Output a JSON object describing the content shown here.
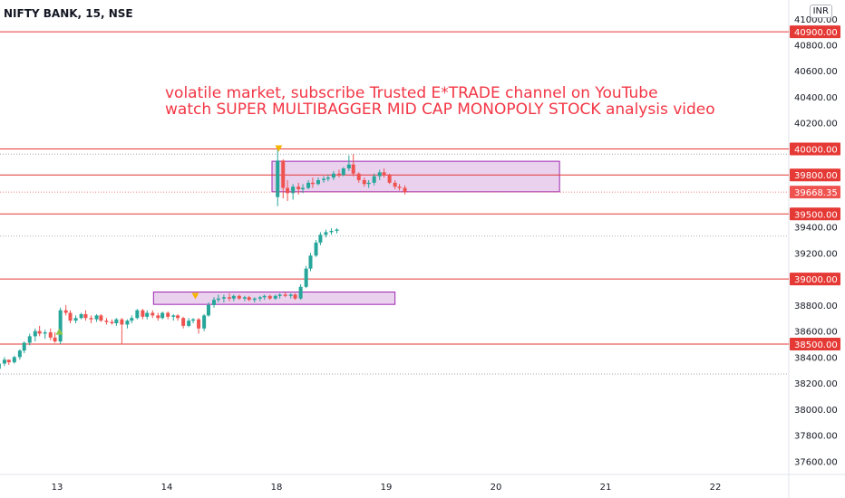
{
  "header": {
    "symbol_label": "NIFTY BANK, 15, NSE",
    "currency_badge": "INR"
  },
  "annotation": {
    "line1": "volatile market, subscribe  Trusted E*TRADE channel on YouTube",
    "line2": "watch SUPER MULTIBAGGER MID CAP MONOPOLY STOCK analysis video"
  },
  "colors": {
    "up": "#26a69a",
    "down": "#ef5350",
    "level_line": "#e53935",
    "zone_fill": "#e1bee7",
    "zone_border": "#9c27b0",
    "marker_up": "#8bc34a",
    "marker_down": "#f5b400"
  },
  "chart_data": {
    "type": "candlestick",
    "ylim": [
      37400,
      41100
    ],
    "x_ticks": [
      "13",
      "14",
      "18",
      "19",
      "20",
      "21",
      "22"
    ],
    "y_ticks": [
      "41000.00",
      "40800.00",
      "40600.00",
      "40400.00",
      "40200.00",
      "39400.00",
      "39200.00",
      "38800.00",
      "38600.00",
      "38400.00",
      "38200.00",
      "38000.00",
      "37800.00",
      "37600.00"
    ],
    "horizontal_levels": [
      {
        "value": 40900,
        "label": "40900.00"
      },
      {
        "value": 40000,
        "label": "40000.00"
      },
      {
        "value": 39800,
        "label": "39800.00"
      },
      {
        "value": 39500,
        "label": "39500.00"
      },
      {
        "value": 39000,
        "label": "39000.00"
      },
      {
        "value": 38500,
        "label": "38500.00"
      }
    ],
    "last_price": {
      "value": 39668.35,
      "label": "39668.35"
    },
    "dotted_levels": [
      39960,
      39330,
      38270
    ],
    "zones": [
      {
        "day_start": 18.0,
        "day_end": 20.58,
        "top": 39905,
        "bottom": 39670
      },
      {
        "day_start": 13.92,
        "day_end": 16.08,
        "top": 38900,
        "bottom": 38805
      }
    ],
    "markers": [
      {
        "type": "up",
        "day": 13.02,
        "price": 38600
      },
      {
        "type": "down",
        "day": 14.26,
        "price": 38865
      },
      {
        "type": "down",
        "day": 18.02,
        "price": 40000
      }
    ],
    "candles": [
      [
        12.38,
        38320,
        38340,
        38240,
        38260
      ],
      [
        12.42,
        38260,
        38330,
        38240,
        38310
      ],
      [
        12.47,
        38310,
        38360,
        38290,
        38350
      ],
      [
        12.52,
        38350,
        38400,
        38330,
        38380
      ],
      [
        12.56,
        38380,
        38380,
        38340,
        38360
      ],
      [
        12.61,
        38360,
        38410,
        38350,
        38400
      ],
      [
        12.66,
        38400,
        38460,
        38380,
        38450
      ],
      [
        12.7,
        38450,
        38520,
        38430,
        38510
      ],
      [
        12.75,
        38510,
        38580,
        38490,
        38560
      ],
      [
        12.8,
        38560,
        38620,
        38520,
        38600
      ],
      [
        12.84,
        38600,
        38640,
        38560,
        38580
      ],
      [
        12.89,
        38580,
        38610,
        38540,
        38590
      ],
      [
        12.94,
        38590,
        38620,
        38530,
        38550
      ],
      [
        12.98,
        38550,
        38590,
        38510,
        38520
      ],
      [
        13.03,
        38520,
        38780,
        38500,
        38760
      ],
      [
        13.08,
        38760,
        38800,
        38720,
        38740
      ],
      [
        13.12,
        38740,
        38760,
        38660,
        38680
      ],
      [
        13.17,
        38680,
        38720,
        38660,
        38700
      ],
      [
        13.22,
        38700,
        38740,
        38690,
        38730
      ],
      [
        13.26,
        38730,
        38760,
        38680,
        38700
      ],
      [
        13.31,
        38700,
        38720,
        38660,
        38690
      ],
      [
        13.36,
        38690,
        38730,
        38670,
        38720
      ],
      [
        13.4,
        38720,
        38730,
        38670,
        38680
      ],
      [
        13.45,
        38680,
        38700,
        38650,
        38670
      ],
      [
        13.5,
        38670,
        38690,
        38650,
        38660
      ],
      [
        13.54,
        38660,
        38700,
        38640,
        38690
      ],
      [
        13.59,
        38690,
        38700,
        38500,
        38650
      ],
      [
        13.64,
        38650,
        38690,
        38620,
        38680
      ],
      [
        13.68,
        38680,
        38720,
        38660,
        38700
      ],
      [
        13.73,
        38700,
        38770,
        38690,
        38760
      ],
      [
        13.78,
        38760,
        38770,
        38690,
        38710
      ],
      [
        13.82,
        38710,
        38760,
        38690,
        38740
      ],
      [
        13.87,
        38740,
        38760,
        38700,
        38720
      ],
      [
        13.92,
        38720,
        38740,
        38680,
        38700
      ],
      [
        13.96,
        38700,
        38750,
        38690,
        38740
      ],
      [
        14.01,
        38740,
        38750,
        38690,
        38710
      ],
      [
        14.06,
        38710,
        38730,
        38680,
        38720
      ],
      [
        14.1,
        38720,
        38730,
        38680,
        38700
      ],
      [
        14.15,
        38700,
        38710,
        38620,
        38640
      ],
      [
        14.2,
        38640,
        38700,
        38630,
        38680
      ],
      [
        14.24,
        38680,
        38700,
        38660,
        38690
      ],
      [
        14.29,
        38690,
        38700,
        38580,
        38620
      ],
      [
        14.34,
        38620,
        38730,
        38600,
        38720
      ],
      [
        14.38,
        38720,
        38820,
        38710,
        38800
      ],
      [
        14.43,
        38800,
        38860,
        38780,
        38840
      ],
      [
        14.47,
        38840,
        38880,
        38820,
        38850
      ],
      [
        14.52,
        38850,
        38880,
        38820,
        38860
      ],
      [
        14.57,
        38860,
        38890,
        38830,
        38850
      ],
      [
        14.61,
        38850,
        38880,
        38830,
        38870
      ],
      [
        14.66,
        38870,
        38880,
        38840,
        38850
      ],
      [
        14.71,
        38850,
        38870,
        38830,
        38860
      ],
      [
        14.75,
        38860,
        38870,
        38830,
        38840
      ],
      [
        14.8,
        38840,
        38860,
        38820,
        38850
      ],
      [
        14.85,
        38850,
        38870,
        38830,
        38860
      ],
      [
        14.89,
        38860,
        38880,
        38840,
        38870
      ],
      [
        14.94,
        38870,
        38880,
        38840,
        38850
      ],
      [
        14.99,
        38850,
        38880,
        38840,
        38870
      ],
      [
        15.03,
        38870,
        38890,
        38850,
        38880
      ],
      [
        15.08,
        38880,
        38900,
        38860,
        38870
      ],
      [
        15.13,
        38870,
        38890,
        38850,
        38880
      ],
      [
        15.17,
        38880,
        38890,
        38840,
        38850
      ],
      [
        15.22,
        38850,
        38960,
        38840,
        38940
      ],
      [
        15.27,
        38940,
        39100,
        38930,
        39080
      ],
      [
        15.31,
        39080,
        39200,
        39060,
        39180
      ],
      [
        15.36,
        39180,
        39300,
        39170,
        39280
      ],
      [
        15.4,
        39280,
        39360,
        39260,
        39340
      ],
      [
        15.45,
        39340,
        39380,
        39320,
        39360
      ],
      [
        15.5,
        39360,
        39390,
        39340,
        39370
      ],
      [
        15.55,
        39370,
        39390,
        39350,
        39380
      ],
      [
        18.01,
        39630,
        40000,
        39560,
        39910
      ],
      [
        18.06,
        39910,
        39920,
        39620,
        39700
      ],
      [
        18.1,
        39700,
        39760,
        39600,
        39660
      ],
      [
        18.15,
        39660,
        39730,
        39610,
        39710
      ],
      [
        18.2,
        39710,
        39740,
        39650,
        39690
      ],
      [
        18.24,
        39690,
        39730,
        39660,
        39700
      ],
      [
        18.29,
        39700,
        39760,
        39690,
        39740
      ],
      [
        18.33,
        39740,
        39780,
        39700,
        39730
      ],
      [
        18.38,
        39730,
        39780,
        39720,
        39760
      ],
      [
        18.43,
        39760,
        39790,
        39740,
        39770
      ],
      [
        18.47,
        39770,
        39800,
        39750,
        39780
      ],
      [
        18.52,
        39780,
        39830,
        39760,
        39810
      ],
      [
        18.57,
        39810,
        39840,
        39780,
        39800
      ],
      [
        18.61,
        39800,
        39860,
        39790,
        39850
      ],
      [
        18.66,
        39850,
        39950,
        39830,
        39880
      ],
      [
        18.7,
        39880,
        39960,
        39790,
        39810
      ],
      [
        18.75,
        39810,
        39820,
        39740,
        39760
      ],
      [
        18.8,
        39760,
        39780,
        39710,
        39730
      ],
      [
        18.84,
        39730,
        39760,
        39700,
        39740
      ],
      [
        18.89,
        39740,
        39810,
        39720,
        39790
      ],
      [
        18.94,
        39790,
        39840,
        39760,
        39820
      ],
      [
        18.98,
        39820,
        39850,
        39780,
        39800
      ],
      [
        19.03,
        39800,
        39810,
        39730,
        39740
      ],
      [
        19.08,
        39740,
        39760,
        39690,
        39710
      ],
      [
        19.12,
        39710,
        39730,
        39680,
        39700
      ],
      [
        19.17,
        39700,
        39720,
        39650,
        39670
      ]
    ]
  }
}
